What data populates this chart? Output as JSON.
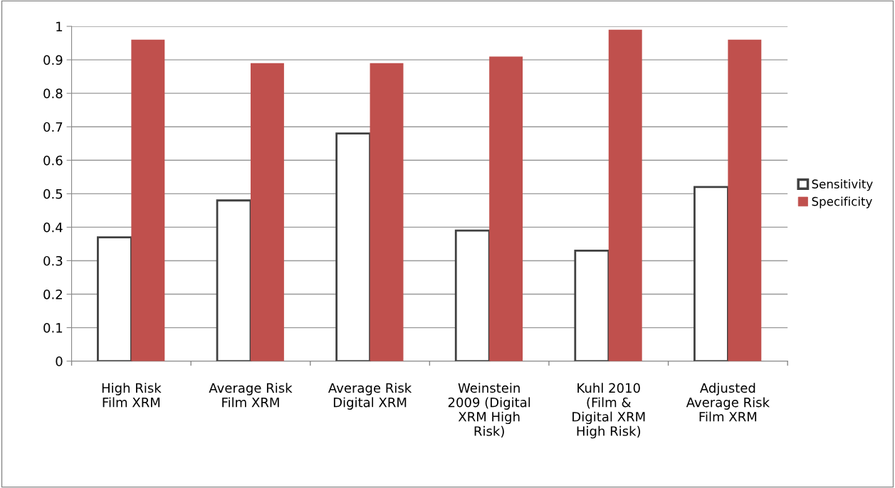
{
  "chart_data": {
    "type": "bar",
    "categories": [
      "High Risk\nFilm XRM",
      "Average Risk\nFilm XRM",
      "Average Risk\nDigital XRM",
      "Weinstein\n2009 (Digital\nXRM High\nRisk)",
      "Kuhl 2010\n(Film &\nDigital XRM\nHigh Risk)",
      "Adjusted\nAverage Risk\nFilm XRM"
    ],
    "series": [
      {
        "name": "Sensitivity",
        "color": "#ffffff",
        "values": [
          0.37,
          0.48,
          0.68,
          0.39,
          0.33,
          0.52
        ]
      },
      {
        "name": "Specificity",
        "color": "#c0504d",
        "values": [
          0.96,
          0.89,
          0.89,
          0.91,
          0.99,
          0.96
        ]
      }
    ],
    "ylim": [
      0,
      1
    ],
    "yticks": [
      0,
      0.1,
      0.2,
      0.3,
      0.4,
      0.5,
      0.6,
      0.7,
      0.8,
      0.9,
      1
    ],
    "grid": "y",
    "legend": "right"
  }
}
